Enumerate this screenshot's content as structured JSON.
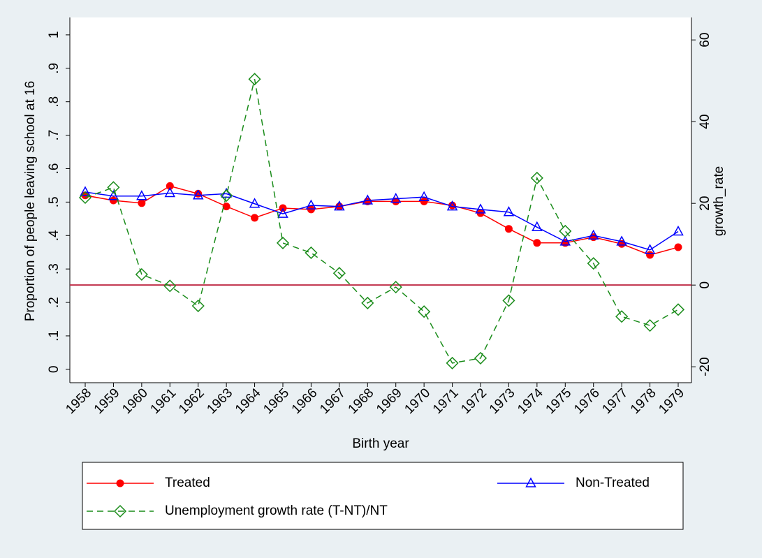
{
  "chart_data": {
    "type": "line",
    "x_label": "Birth year",
    "y_label": "Proportion of people leaving school at 16",
    "y2_label": "growth_rate",
    "categories": [
      "1958",
      "1959",
      "1960",
      "1961",
      "1962",
      "1963",
      "1964",
      "1965",
      "1966",
      "1967",
      "1968",
      "1969",
      "1970",
      "1971",
      "1972",
      "1973",
      "1974",
      "1975",
      "1976",
      "1977",
      "1978",
      "1979"
    ],
    "series": [
      {
        "name": "Treated",
        "color": "#ff0000",
        "marker": "circle",
        "dash": false,
        "values": [
          0.52,
          0.505,
          0.497,
          0.548,
          0.525,
          0.487,
          0.453,
          0.482,
          0.478,
          0.487,
          0.502,
          0.502,
          0.502,
          0.49,
          0.467,
          0.42,
          0.378,
          0.378,
          0.395,
          0.375,
          0.342,
          0.365
        ]
      },
      {
        "name": "Non-Treated",
        "color": "#0000ff",
        "marker": "triangle",
        "dash": false,
        "values": [
          0.53,
          0.518,
          0.518,
          0.527,
          0.52,
          0.525,
          0.495,
          0.465,
          0.49,
          0.487,
          0.505,
          0.51,
          0.515,
          0.487,
          0.478,
          0.47,
          0.425,
          0.382,
          0.4,
          0.382,
          0.357,
          0.412
        ]
      },
      {
        "name": "Unemployment growth rate (T-NT)/NT",
        "color": "#1a8c1a",
        "marker": "diamond",
        "dash": true,
        "axis": "y2",
        "values": [
          21.4,
          23.9,
          2.6,
          -0.2,
          -5.1,
          21.9,
          50.4,
          10.3,
          7.9,
          2.9,
          -4.4,
          -0.5,
          -6.5,
          -19.1,
          -17.9,
          -3.8,
          26.2,
          13.2,
          5.3,
          -7.7,
          -9.9,
          -6
        ]
      }
    ],
    "ylim": [
      -0.04,
      1.052
    ],
    "yticks": [
      0,
      {
        "value": 0.1,
        "label": ".1"
      },
      {
        "value": 0.2,
        "label": ".2"
      },
      {
        "value": 0.3,
        "label": ".3"
      },
      {
        "value": 0.4,
        "label": ".4"
      },
      {
        "value": 0.5,
        "label": ".5"
      },
      {
        "value": 0.6,
        "label": ".6"
      },
      {
        "value": 0.7,
        "label": ".7"
      },
      {
        "value": 0.8,
        "label": ".8"
      },
      {
        "value": 0.9,
        "label": ".9"
      },
      1
    ],
    "y2lim": [
      -23.9,
      65.5
    ],
    "y2ticks": [
      -20,
      0,
      20,
      40,
      60
    ],
    "y2_reference_line": {
      "value": 0,
      "color": "#c0304a"
    },
    "legend": "bottom"
  }
}
